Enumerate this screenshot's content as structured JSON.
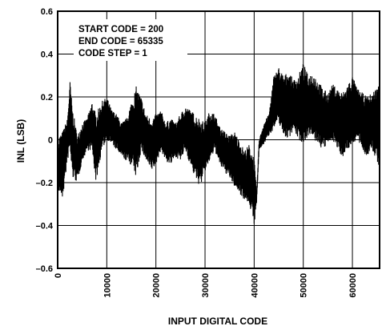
{
  "chart_data": {
    "type": "line",
    "title": "",
    "xlabel": "INPUT DIGITAL CODE",
    "ylabel": "INL (LSB)",
    "xlim": [
      0,
      65535
    ],
    "ylim": [
      -0.6,
      0.6
    ],
    "x_ticks": [
      0,
      10000,
      20000,
      30000,
      40000,
      50000,
      60000
    ],
    "x_tick_labels": [
      "0",
      "10000",
      "20000",
      "30000",
      "40000",
      "50000",
      "60000"
    ],
    "y_ticks": [
      -0.6,
      -0.4,
      -0.2,
      0,
      0.2,
      0.4,
      0.6
    ],
    "y_tick_labels": [
      "–0.6",
      "–0.4",
      "–0.2",
      "0",
      "0.2",
      "0.4",
      "0.6"
    ],
    "grid": true,
    "annotations": [
      "START CODE = 200",
      "END CODE = 65335",
      "CODE STEP = 1"
    ],
    "series": [
      {
        "color": "#000000",
        "x": [
          200,
          1000,
          2000,
          2500,
          3000,
          4000,
          5000,
          6000,
          7000,
          7800,
          9000,
          10000,
          11000,
          12000,
          13000,
          14000,
          15000,
          16000,
          17000,
          18000,
          19000,
          20000,
          21000,
          22000,
          23000,
          24000,
          25000,
          26000,
          27000,
          28000,
          29000,
          30000,
          31000,
          32000,
          33000,
          34000,
          35000,
          36000,
          37000,
          38000,
          39000,
          40000,
          40500,
          41000,
          42000,
          43000,
          44000,
          45000,
          46000,
          47000,
          48000,
          49000,
          50000,
          51000,
          52000,
          53000,
          54000,
          55000,
          56000,
          57000,
          58000,
          59000,
          60000,
          61000,
          62000,
          63000,
          64000,
          65335
        ],
        "upper": [
          0.02,
          0.04,
          0.1,
          0.28,
          0.15,
          0.02,
          0.08,
          0.1,
          0.18,
          0.12,
          0.18,
          0.2,
          0.14,
          0.12,
          0.08,
          0.1,
          0.18,
          0.25,
          0.2,
          0.12,
          0.1,
          0.12,
          0.14,
          0.08,
          0.1,
          0.08,
          0.12,
          0.16,
          0.14,
          0.12,
          0.1,
          0.08,
          0.14,
          0.12,
          0.06,
          0.04,
          0.02,
          0.04,
          0.0,
          -0.05,
          -0.02,
          -0.08,
          -0.25,
          0.0,
          0.08,
          0.12,
          0.3,
          0.34,
          0.3,
          0.32,
          0.28,
          0.3,
          0.36,
          0.3,
          0.32,
          0.28,
          0.24,
          0.22,
          0.26,
          0.24,
          0.22,
          0.26,
          0.3,
          0.24,
          0.22,
          0.2,
          0.22,
          0.26
        ],
        "lower": [
          -0.24,
          -0.28,
          -0.1,
          -0.05,
          -0.18,
          -0.2,
          -0.1,
          -0.05,
          -0.05,
          -0.2,
          -0.05,
          0.0,
          -0.02,
          -0.05,
          -0.08,
          -0.1,
          -0.12,
          -0.18,
          -0.05,
          -0.1,
          -0.15,
          -0.12,
          -0.05,
          -0.1,
          -0.12,
          -0.08,
          -0.1,
          -0.05,
          -0.12,
          -0.18,
          -0.22,
          -0.15,
          -0.1,
          -0.05,
          -0.12,
          -0.15,
          -0.18,
          -0.22,
          -0.25,
          -0.28,
          -0.3,
          -0.4,
          -0.3,
          -0.05,
          -0.02,
          0.02,
          0.05,
          0.08,
          0.02,
          0.0,
          0.05,
          0.0,
          -0.02,
          0.02,
          0.0,
          -0.02,
          -0.05,
          -0.02,
          0.0,
          -0.05,
          -0.08,
          -0.05,
          -0.02,
          0.0,
          -0.05,
          -0.08,
          -0.05,
          -0.12
        ]
      }
    ]
  }
}
